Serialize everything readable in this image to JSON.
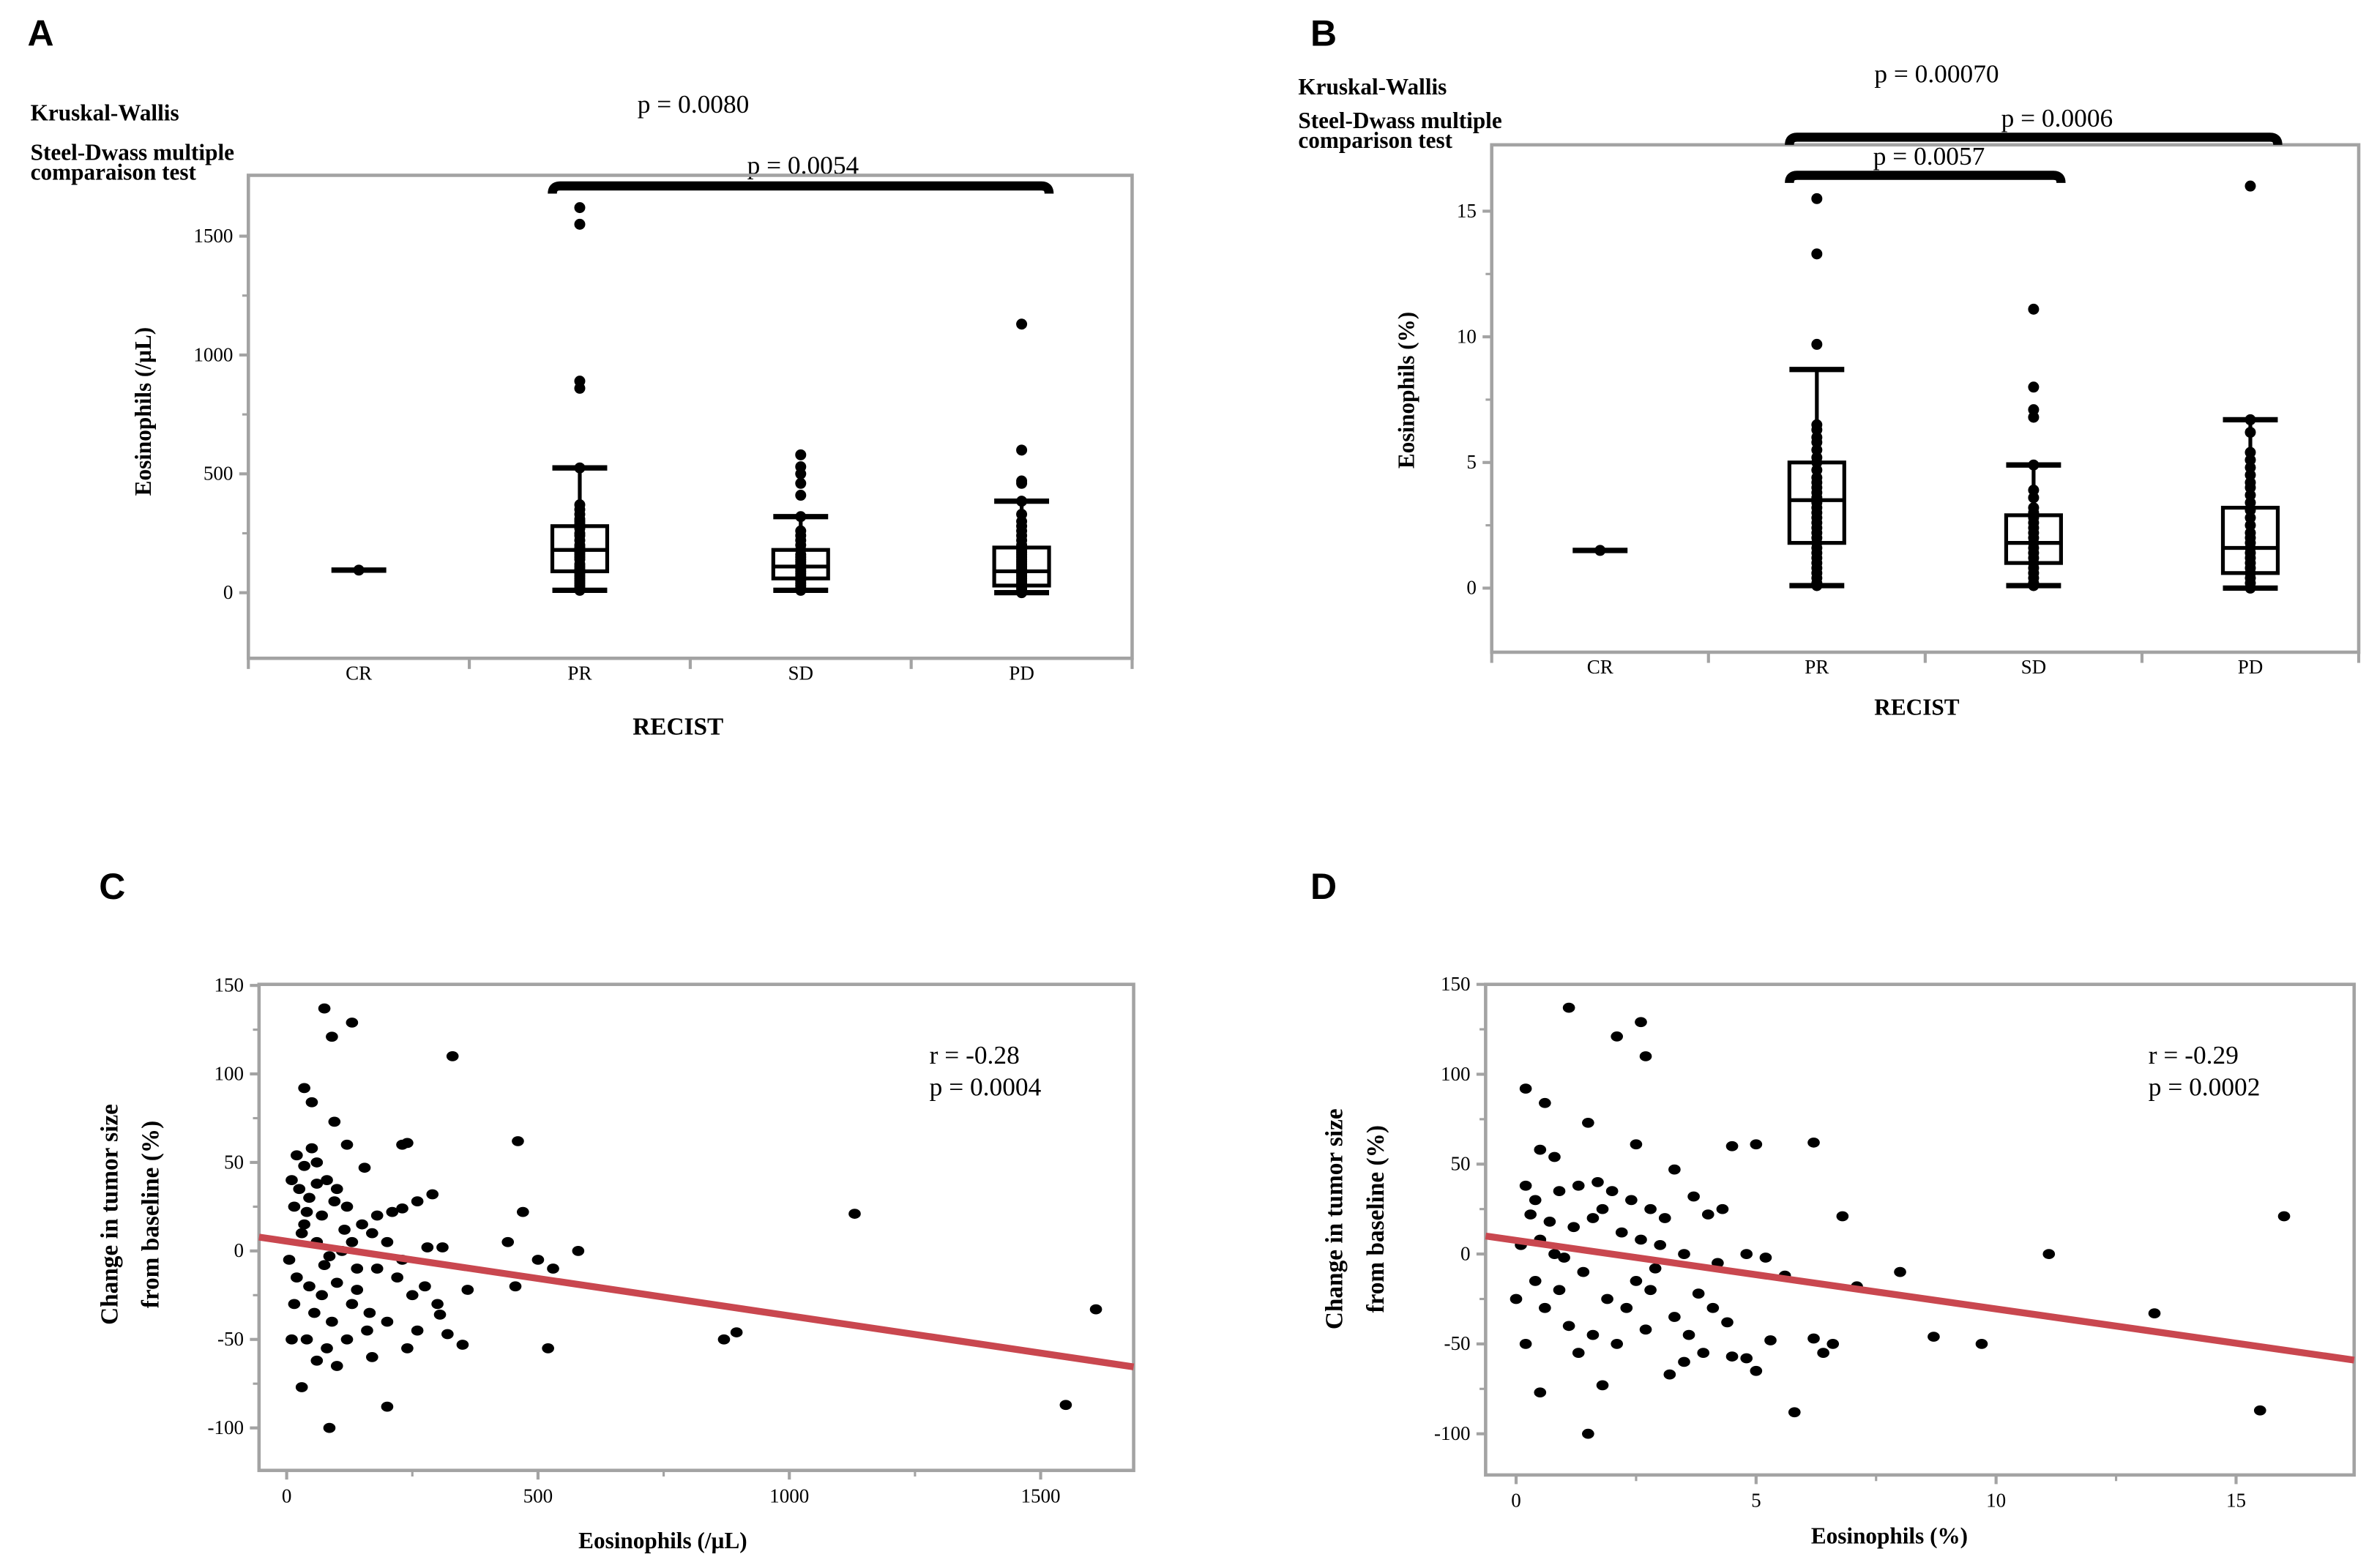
{
  "chart_data": [
    {
      "panel": "A",
      "type": "box",
      "categories": [
        "CR",
        "PR",
        "SD",
        "PD"
      ],
      "xlabel": "RECIST",
      "ylabel": "Eosinophils (/µL)",
      "ylim": [
        -276,
        1756
      ],
      "yticks": [
        0,
        500,
        1000,
        1500
      ],
      "ytick_labels": [
        "0",
        "500",
        "1000",
        "1500"
      ],
      "stat_label_1": "Kruskal-Wallis",
      "stat_label_2a": "Steel-Dwass multiple",
      "stat_label_2b": "comparaison test",
      "kruskal_p": "p = 0.0080",
      "comparisons": [
        {
          "from": "PR",
          "to": "PD",
          "p": "p = 0.0054"
        }
      ],
      "boxes": [
        {
          "cat": "CR",
          "q1": 95,
          "median": 95,
          "q3": 95,
          "low": 95,
          "high": 95,
          "points": [
            95
          ]
        },
        {
          "cat": "PR",
          "q1": 90,
          "median": 180,
          "q3": 280,
          "low": 10,
          "high": 525,
          "points": [
            1620,
            1550,
            890,
            860,
            525,
            370,
            350,
            330,
            310,
            300,
            290,
            270,
            250,
            240,
            220,
            200,
            190,
            180,
            170,
            160,
            150,
            140,
            120,
            110,
            100,
            90,
            80,
            70,
            60,
            50,
            40,
            30,
            20,
            10
          ]
        },
        {
          "cat": "SD",
          "q1": 60,
          "median": 110,
          "q3": 180,
          "low": 10,
          "high": 320,
          "points": [
            580,
            530,
            500,
            460,
            410,
            320,
            260,
            240,
            220,
            200,
            180,
            160,
            150,
            140,
            130,
            120,
            110,
            100,
            90,
            80,
            70,
            60,
            50,
            40,
            30,
            20,
            10
          ]
        },
        {
          "cat": "PD",
          "q1": 30,
          "median": 90,
          "q3": 190,
          "low": 0,
          "high": 385,
          "points": [
            1130,
            600,
            470,
            460,
            385,
            330,
            300,
            280,
            260,
            240,
            220,
            200,
            180,
            170,
            160,
            150,
            140,
            130,
            120,
            110,
            100,
            90,
            80,
            70,
            60,
            50,
            40,
            30,
            20,
            10,
            0
          ]
        }
      ]
    },
    {
      "panel": "B",
      "type": "box",
      "categories": [
        "CR",
        "PR",
        "SD",
        "PD"
      ],
      "xlabel": "RECIST",
      "ylabel": "Eosinophils (%)",
      "ylim": [
        -2.55,
        17.64
      ],
      "yticks": [
        0,
        5,
        10,
        15
      ],
      "ytick_labels": [
        "0",
        "5",
        "10",
        "15"
      ],
      "stat_label_1": "Kruskal-Wallis",
      "stat_label_2a": "Steel-Dwass multiple",
      "stat_label_2b": "comparison test",
      "kruskal_p": "p = 0.00070",
      "comparisons": [
        {
          "from": "PR",
          "to": "PD",
          "p": "p = 0.0006"
        },
        {
          "from": "PR",
          "to": "SD",
          "p": "p = 0.0057"
        }
      ],
      "boxes": [
        {
          "cat": "CR",
          "q1": 1.5,
          "median": 1.5,
          "q3": 1.5,
          "low": 1.5,
          "high": 1.5,
          "points": [
            1.5
          ]
        },
        {
          "cat": "PR",
          "q1": 1.8,
          "median": 3.5,
          "q3": 5.0,
          "low": 0.1,
          "high": 8.7,
          "points": [
            15.5,
            13.3,
            9.7,
            6.5,
            6.3,
            6.0,
            5.8,
            5.5,
            5.2,
            5.0,
            4.7,
            4.4,
            4.2,
            4.0,
            3.8,
            3.6,
            3.4,
            3.2,
            3.0,
            2.8,
            2.6,
            2.4,
            2.2,
            2.0,
            1.8,
            1.6,
            1.4,
            1.2,
            1.0,
            0.8,
            0.6,
            0.4,
            0.2,
            0.1
          ]
        },
        {
          "cat": "SD",
          "q1": 1.0,
          "median": 1.8,
          "q3": 2.9,
          "low": 0.1,
          "high": 4.9,
          "points": [
            11.1,
            8.0,
            7.1,
            6.8,
            4.9,
            3.9,
            3.6,
            3.2,
            3.0,
            2.8,
            2.6,
            2.4,
            2.2,
            2.0,
            1.8,
            1.6,
            1.4,
            1.2,
            1.0,
            0.8,
            0.6,
            0.4,
            0.2,
            0.1
          ]
        },
        {
          "cat": "PD",
          "q1": 0.6,
          "median": 1.6,
          "q3": 3.2,
          "low": 0.0,
          "high": 6.7,
          "points": [
            16.0,
            6.7,
            6.2,
            5.4,
            5.1,
            4.8,
            4.5,
            4.2,
            4.0,
            3.7,
            3.4,
            3.1,
            2.8,
            2.5,
            2.2,
            2.0,
            1.8,
            1.6,
            1.4,
            1.2,
            1.0,
            0.8,
            0.6,
            0.4,
            0.2,
            0.0
          ]
        }
      ]
    },
    {
      "panel": "C",
      "type": "scatter",
      "xlabel": "Eosinophils (/µL)",
      "ylabel_line1": "Change in tumor size",
      "ylabel_line2": "from baseline (%)",
      "xlim": [
        -55,
        1685
      ],
      "ylim": [
        -124,
        150.6
      ],
      "xticks": [
        0,
        500,
        1000,
        1500
      ],
      "xtick_labels": [
        "0",
        "500",
        "1000",
        "1500"
      ],
      "yticks": [
        -100,
        -50,
        0,
        50,
        100,
        150
      ],
      "ytick_labels": [
        "-100",
        "-50",
        "0",
        "50",
        "100",
        "150"
      ],
      "r_text": "r = -0.28",
      "p_text": "p = 0.0004",
      "regression": {
        "x": [
          -55,
          1685
        ],
        "y": [
          7.8,
          -65.5
        ],
        "color": "#c9474f"
      },
      "points": [
        [
          75,
          137
        ],
        [
          130,
          129
        ],
        [
          90,
          121
        ],
        [
          35,
          92
        ],
        [
          330,
          110
        ],
        [
          50,
          84
        ],
        [
          95,
          73
        ],
        [
          460,
          62
        ],
        [
          240,
          61
        ],
        [
          230,
          60
        ],
        [
          120,
          60
        ],
        [
          50,
          58
        ],
        [
          20,
          54
        ],
        [
          60,
          50
        ],
        [
          35,
          48
        ],
        [
          155,
          47
        ],
        [
          470,
          22
        ],
        [
          1130,
          21
        ],
        [
          440,
          5
        ],
        [
          580,
          0
        ],
        [
          500,
          -5
        ],
        [
          530,
          -10
        ],
        [
          360,
          -22
        ],
        [
          455,
          -20
        ],
        [
          870,
          -50
        ],
        [
          895,
          -46
        ],
        [
          520,
          -55
        ],
        [
          1550,
          -87
        ],
        [
          1610,
          -33
        ],
        [
          200,
          -88
        ],
        [
          85,
          -100
        ],
        [
          30,
          -77
        ],
        [
          305,
          -36
        ],
        [
          320,
          -47
        ],
        [
          350,
          -53
        ],
        [
          280,
          2
        ],
        [
          310,
          2
        ],
        [
          290,
          32
        ],
        [
          260,
          28
        ],
        [
          210,
          22
        ],
        [
          230,
          24
        ],
        [
          180,
          20
        ],
        [
          10,
          40
        ],
        [
          25,
          35
        ],
        [
          45,
          30
        ],
        [
          60,
          38
        ],
        [
          80,
          40
        ],
        [
          100,
          35
        ],
        [
          15,
          25
        ],
        [
          40,
          22
        ],
        [
          70,
          20
        ],
        [
          95,
          28
        ],
        [
          120,
          25
        ],
        [
          150,
          15
        ],
        [
          170,
          10
        ],
        [
          130,
          5
        ],
        [
          110,
          0
        ],
        [
          85,
          -3
        ],
        [
          60,
          5
        ],
        [
          30,
          10
        ],
        [
          5,
          -5
        ],
        [
          20,
          -15
        ],
        [
          45,
          -20
        ],
        [
          70,
          -25
        ],
        [
          100,
          -18
        ],
        [
          140,
          -22
        ],
        [
          180,
          -10
        ],
        [
          220,
          -15
        ],
        [
          250,
          -25
        ],
        [
          200,
          -40
        ],
        [
          160,
          -45
        ],
        [
          120,
          -50
        ],
        [
          80,
          -55
        ],
        [
          40,
          -50
        ],
        [
          10,
          -50
        ],
        [
          55,
          -35
        ],
        [
          90,
          -40
        ],
        [
          130,
          -30
        ],
        [
          170,
          -60
        ],
        [
          240,
          -55
        ],
        [
          260,
          -45
        ],
        [
          15,
          -30
        ],
        [
          100,
          -65
        ],
        [
          140,
          -10
        ],
        [
          200,
          5
        ],
        [
          60,
          -62
        ],
        [
          35,
          15
        ],
        [
          115,
          12
        ],
        [
          165,
          -35
        ],
        [
          230,
          -5
        ],
        [
          275,
          -20
        ],
        [
          75,
          -8
        ],
        [
          300,
          -30
        ]
      ]
    },
    {
      "panel": "D",
      "type": "scatter",
      "xlabel": "Eosinophils (%)",
      "ylabel_line1": "Change in tumor size",
      "ylabel_line2": "from baseline (%)",
      "xlim": [
        -0.635,
        17.46
      ],
      "ylim": [
        -122.9,
        150
      ],
      "xticks": [
        0,
        5,
        10,
        15
      ],
      "xtick_labels": [
        "0",
        "5",
        "10",
        "15"
      ],
      "yticks": [
        -100,
        -50,
        0,
        50,
        100,
        150
      ],
      "ytick_labels": [
        "-100",
        "-50",
        "0",
        "50",
        "100",
        "150"
      ],
      "r_text": "r = -0.29",
      "p_text": "p = 0.0002",
      "regression": {
        "x": [
          -0.635,
          17.46
        ],
        "y": [
          10,
          -59
        ],
        "color": "#c9474f"
      },
      "points": [
        [
          1.1,
          137
        ],
        [
          2.6,
          129
        ],
        [
          2.1,
          121
        ],
        [
          2.7,
          110
        ],
        [
          0.2,
          92
        ],
        [
          0.6,
          84
        ],
        [
          1.5,
          73
        ],
        [
          6.2,
          62
        ],
        [
          5.0,
          61
        ],
        [
          4.5,
          60
        ],
        [
          2.5,
          61
        ],
        [
          0.5,
          58
        ],
        [
          0.8,
          54
        ],
        [
          3.3,
          47
        ],
        [
          0.2,
          38
        ],
        [
          16,
          21
        ],
        [
          11.1,
          0
        ],
        [
          13.3,
          -33
        ],
        [
          15.5,
          -87
        ],
        [
          9.7,
          -50
        ],
        [
          8.7,
          -46
        ],
        [
          8.0,
          -10
        ],
        [
          7.1,
          -18
        ],
        [
          6.8,
          21
        ],
        [
          6.4,
          -55
        ],
        [
          6.2,
          -47
        ],
        [
          5.8,
          -88
        ],
        [
          1.5,
          -100
        ],
        [
          0.5,
          -77
        ],
        [
          1.8,
          -73
        ],
        [
          5.0,
          -65
        ],
        [
          4.8,
          -58
        ],
        [
          4.5,
          -57
        ],
        [
          5.3,
          -48
        ],
        [
          3.2,
          -67
        ],
        [
          3.5,
          -60
        ],
        [
          0.4,
          30
        ],
        [
          0.9,
          35
        ],
        [
          1.3,
          38
        ],
        [
          1.7,
          40
        ],
        [
          2.0,
          35
        ],
        [
          2.4,
          30
        ],
        [
          2.8,
          25
        ],
        [
          3.1,
          20
        ],
        [
          3.7,
          32
        ],
        [
          4.0,
          22
        ],
        [
          4.3,
          25
        ],
        [
          0.3,
          22
        ],
        [
          0.7,
          18
        ],
        [
          1.2,
          15
        ],
        [
          1.6,
          20
        ],
        [
          2.2,
          12
        ],
        [
          2.6,
          8
        ],
        [
          3.0,
          5
        ],
        [
          3.5,
          0
        ],
        [
          4.2,
          -5
        ],
        [
          5.2,
          -2
        ],
        [
          0.1,
          5
        ],
        [
          0.4,
          -15
        ],
        [
          0.9,
          -20
        ],
        [
          1.4,
          -10
        ],
        [
          1.9,
          -25
        ],
        [
          2.3,
          -30
        ],
        [
          2.8,
          -20
        ],
        [
          3.3,
          -35
        ],
        [
          3.8,
          -22
        ],
        [
          4.4,
          -38
        ],
        [
          1.1,
          -40
        ],
        [
          1.6,
          -45
        ],
        [
          2.1,
          -50
        ],
        [
          2.7,
          -42
        ],
        [
          0.2,
          -50
        ],
        [
          0.6,
          -30
        ],
        [
          1.0,
          -2
        ],
        [
          5.6,
          -12
        ],
        [
          6.6,
          -50
        ],
        [
          0.0,
          -25
        ],
        [
          0.8,
          0
        ],
        [
          2.9,
          -8
        ],
        [
          3.6,
          -45
        ],
        [
          4.1,
          -30
        ],
        [
          1.3,
          -55
        ],
        [
          2.5,
          -15
        ],
        [
          3.9,
          -55
        ],
        [
          0.5,
          8
        ],
        [
          1.8,
          25
        ],
        [
          4.8,
          0
        ]
      ]
    }
  ],
  "panel_labels": [
    "A",
    "B",
    "C",
    "D"
  ]
}
